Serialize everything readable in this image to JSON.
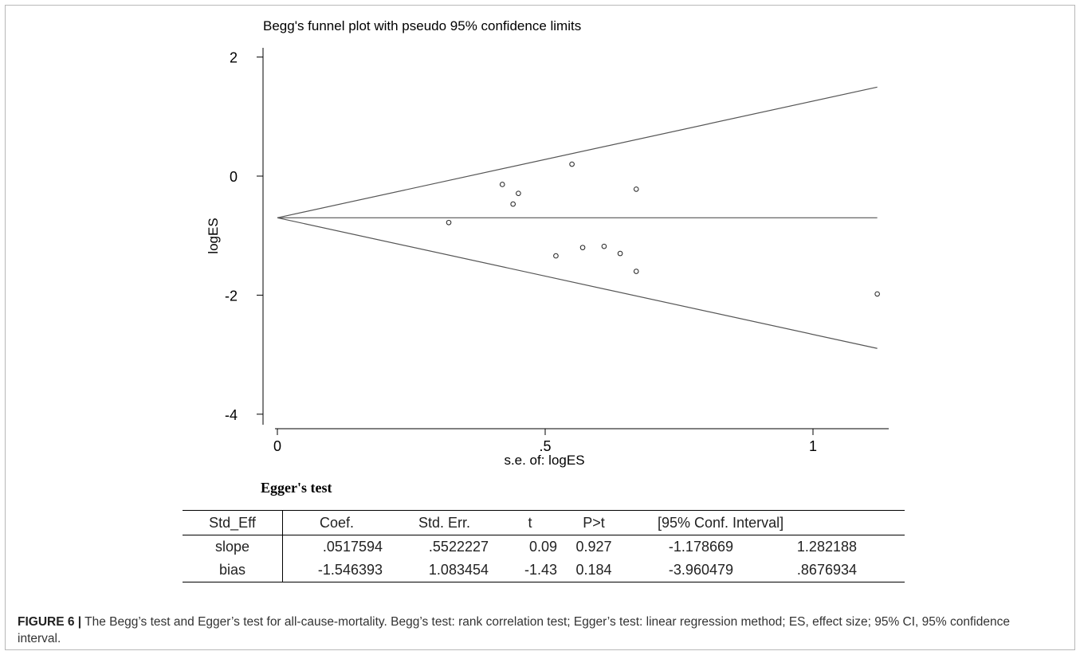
{
  "chart_data": {
    "type": "scatter",
    "title": "Begg's funnel plot with pseudo 95% confidence limits",
    "xlabel": "s.e. of: logES",
    "ylabel": "logES",
    "xlim": [
      0,
      1.14
    ],
    "ylim": [
      -4.1,
      2.15
    ],
    "xticks": [
      0,
      0.5,
      1
    ],
    "xtick_labels": [
      "0",
      ".5",
      "1"
    ],
    "yticks": [
      2,
      0,
      -2,
      -4
    ],
    "ytick_labels": [
      "2",
      "0",
      "-2",
      "-4"
    ],
    "grid": false,
    "pooled_estimate": -0.7,
    "confidence_multiplier": 1.96,
    "funnel_max_se": 1.12,
    "points": [
      {
        "x": 0.32,
        "y": -0.78
      },
      {
        "x": 0.42,
        "y": -0.14
      },
      {
        "x": 0.44,
        "y": -0.47
      },
      {
        "x": 0.45,
        "y": -0.29
      },
      {
        "x": 0.52,
        "y": -1.34
      },
      {
        "x": 0.55,
        "y": 0.2
      },
      {
        "x": 0.57,
        "y": -1.2
      },
      {
        "x": 0.61,
        "y": -1.18
      },
      {
        "x": 0.64,
        "y": -1.3
      },
      {
        "x": 0.67,
        "y": -1.6
      },
      {
        "x": 0.67,
        "y": -0.22
      },
      {
        "x": 1.12,
        "y": -1.98
      }
    ]
  },
  "egger": {
    "title": "Egger's test",
    "headers": [
      "Std_Eff",
      "Coef.",
      "Std. Err.",
      "t",
      "P>t",
      "[95% Conf. Interval]"
    ],
    "rows": [
      {
        "name": "slope",
        "coef": ".0517594",
        "se": ".5522227",
        "t": "0.09",
        "p": "0.927",
        "ci_low": "-1.178669",
        "ci_high": "1.282188"
      },
      {
        "name": "bias",
        "coef": "-1.546393",
        "se": "1.083454",
        "t": "-1.43",
        "p": "0.184",
        "ci_low": "-3.960479",
        "ci_high": ".8676934"
      }
    ]
  },
  "caption": {
    "label": "FIGURE 6 |",
    "text": "The Begg’s test and Egger’s test for all-cause-mortality. Begg’s test: rank correlation test; Egger’s test: linear regression method; ES, effect size; 95% CI, 95% confidence interval."
  },
  "colors": {
    "axis": "#000000",
    "funnel_lines": "#555555",
    "points": "#222222"
  }
}
